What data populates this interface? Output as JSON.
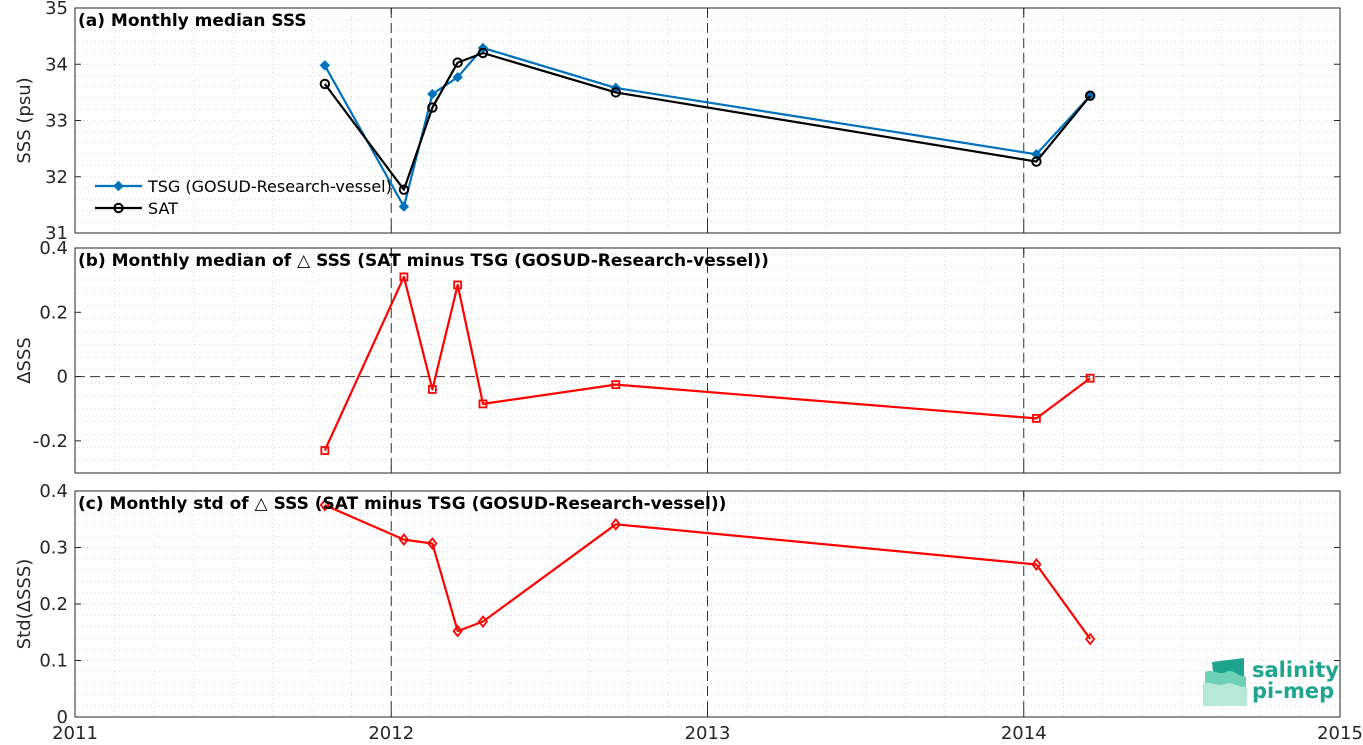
{
  "chart_data": [
    {
      "type": "line",
      "title": "(a) Monthly median SSS",
      "xlabel": "",
      "ylabel": "SSS (psu)",
      "xlim": [
        2011,
        2015
      ],
      "ylim": [
        31,
        35
      ],
      "xticks": [
        "2011",
        "2012",
        "2013",
        "2014",
        "2015"
      ],
      "yticks": [
        "31",
        "32",
        "33",
        "34",
        "35"
      ],
      "grid": "dotted-minor",
      "legend": "left",
      "year_markers": [
        2012,
        2013,
        2014
      ],
      "series": [
        {
          "name": "TSG (GOSUD-Research-vessel)",
          "color": "#0072bd",
          "marker": "diamond-filled",
          "x": [
            2011.79,
            2012.04,
            2012.13,
            2012.21,
            2012.29,
            2012.71,
            2014.04,
            2014.21
          ],
          "y": [
            33.98,
            31.47,
            33.47,
            33.77,
            34.29,
            33.58,
            32.4,
            33.44
          ]
        },
        {
          "name": "SAT",
          "color": "#000000",
          "marker": "circle-open",
          "x": [
            2011.79,
            2012.04,
            2012.13,
            2012.21,
            2012.29,
            2012.71,
            2014.04,
            2014.21
          ],
          "y": [
            33.65,
            31.77,
            33.23,
            34.03,
            34.2,
            33.5,
            32.27,
            33.44
          ]
        }
      ]
    },
    {
      "type": "line",
      "title": "(b) Monthly median of △ SSS (SAT minus TSG (GOSUD-Research-vessel))",
      "xlabel": "",
      "ylabel": "ΔSSS",
      "xlim": [
        2011,
        2015
      ],
      "ylim": [
        -0.3,
        0.4
      ],
      "xticks": [
        "2011",
        "2012",
        "2013",
        "2014",
        "2015"
      ],
      "yticks": [
        "-0.2",
        "0",
        "0.2",
        "0.4"
      ],
      "grid": "dotted-minor",
      "zero_line": true,
      "year_markers": [
        2012,
        2013,
        2014
      ],
      "series": [
        {
          "color": "#ff0000",
          "marker": "square-open",
          "x": [
            2011.79,
            2012.04,
            2012.13,
            2012.21,
            2012.29,
            2012.71,
            2014.04,
            2014.21
          ],
          "y": [
            -0.23,
            0.31,
            -0.04,
            0.285,
            -0.085,
            -0.025,
            -0.13,
            -0.005
          ]
        }
      ]
    },
    {
      "type": "line",
      "title": "(c) Monthly std of △ SSS (SAT minus TSG (GOSUD-Research-vessel))",
      "xlabel": "",
      "ylabel": "Std(ΔSSS)",
      "xlim": [
        2011,
        2015
      ],
      "ylim": [
        0,
        0.4
      ],
      "xticks": [
        "2011",
        "2012",
        "2013",
        "2014",
        "2015"
      ],
      "yticks": [
        "0",
        "0.1",
        "0.2",
        "0.3",
        "0.4"
      ],
      "grid": "dotted-minor",
      "year_markers": [
        2012,
        2013,
        2014
      ],
      "series": [
        {
          "color": "#ff0000",
          "marker": "diamond-open",
          "x": [
            2011.79,
            2012.04,
            2012.13,
            2012.21,
            2012.29,
            2012.71,
            2014.04,
            2014.21
          ],
          "y": [
            0.375,
            0.314,
            0.307,
            0.152,
            0.169,
            0.341,
            0.27,
            0.138
          ]
        }
      ]
    }
  ],
  "logo": {
    "line1": "salinity",
    "line2": "pi-mep",
    "color": "#1fa58f"
  }
}
